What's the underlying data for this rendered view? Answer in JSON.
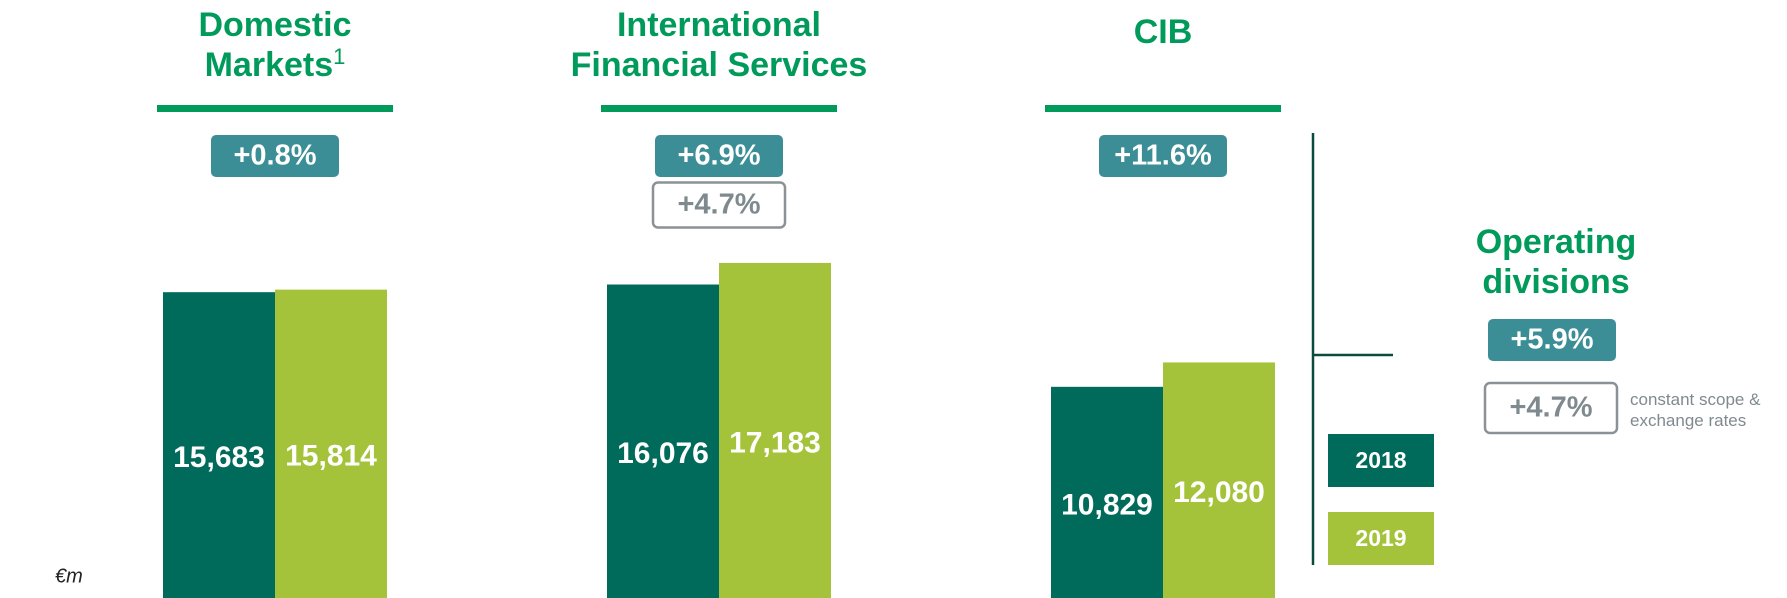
{
  "chart_data": {
    "type": "bar",
    "categories": [
      "Domestic Markets",
      "International Financial Services",
      "CIB"
    ],
    "category_notes": [
      "1",
      null,
      null
    ],
    "series": [
      {
        "name": "2018",
        "color": "#006a5b",
        "values": [
          15683,
          16076,
          10829
        ],
        "value_labels": [
          "15,683",
          "16,076",
          "10,829"
        ]
      },
      {
        "name": "2019",
        "color": "#a5c33a",
        "values": [
          15814,
          17183,
          12080
        ],
        "value_labels": [
          "15,814",
          "17,183",
          "12,080"
        ]
      }
    ],
    "growth": [
      "+0.8%",
      "+6.9%",
      "+11.6%"
    ],
    "growth_constant": [
      null,
      "+4.7%",
      null
    ],
    "total": {
      "label": "Operating divisions",
      "growth": "+5.9%",
      "growth_constant": "+4.7%",
      "note": "constant scope & exchange rates"
    },
    "unit": "€m",
    "ylim": [
      0,
      20000
    ]
  }
}
